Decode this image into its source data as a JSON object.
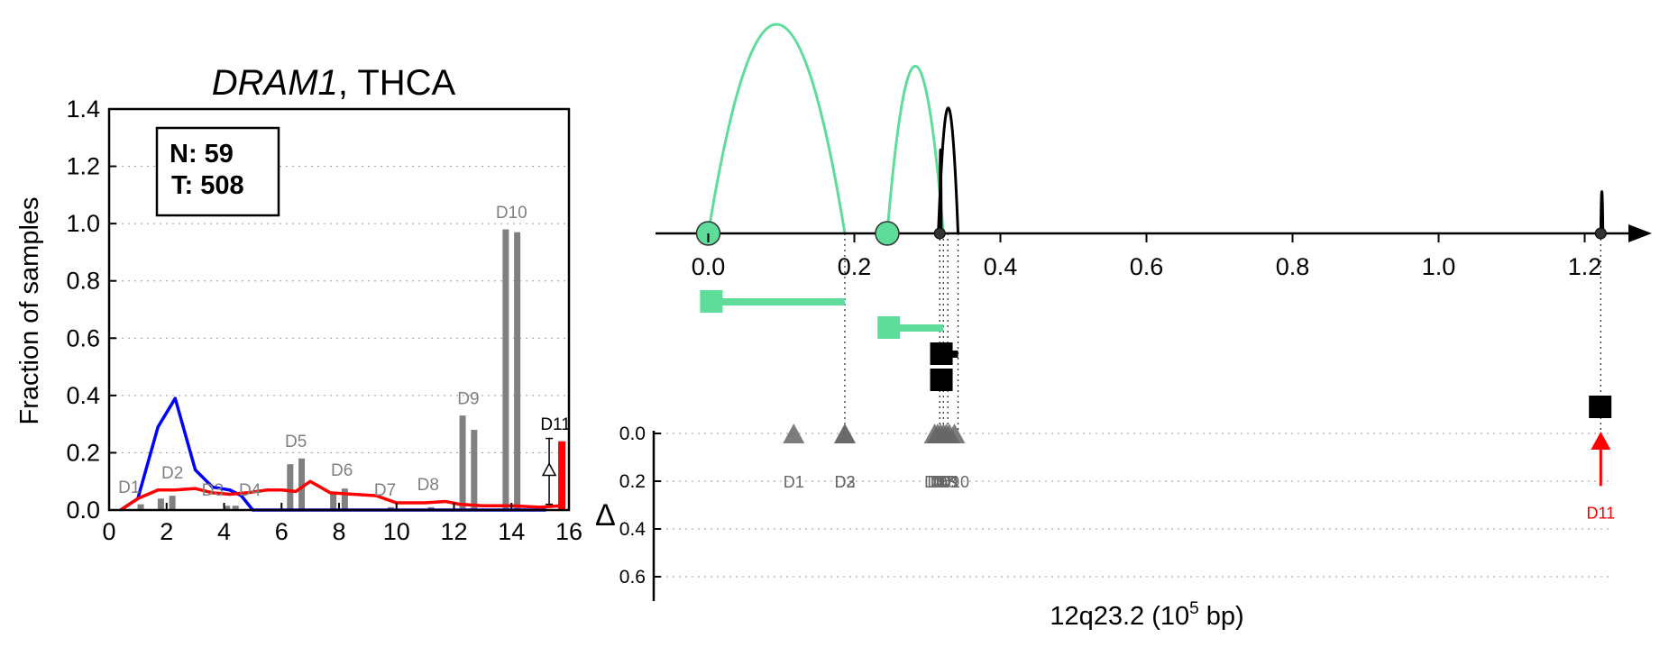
{
  "chart_data": [
    {
      "type": "bar",
      "title_gene": "DRAM1",
      "title_rest": ", THCA",
      "ylabel": "Fraction of samples",
      "xlim": [
        0,
        16
      ],
      "ylim": [
        0,
        1.4
      ],
      "xticks": [
        "0",
        "2",
        "4",
        "6",
        "8",
        "10",
        "12",
        "14",
        "16"
      ],
      "yticks": [
        "0.0",
        "0.2",
        "0.4",
        "0.6",
        "0.8",
        "1.0",
        "1.2",
        "1.4"
      ],
      "legend": {
        "n_label": "N: 59",
        "t_label": "T: 508",
        "placement": "top-left"
      },
      "grid": "horizontal dotted",
      "bars": [
        {
          "x": 1.1,
          "value": 0.02
        },
        {
          "x": 1.8,
          "value": 0.04
        },
        {
          "x": 2.2,
          "value": 0.05
        },
        {
          "x": 4.1,
          "value": 0.015
        },
        {
          "x": 4.4,
          "value": 0.015
        },
        {
          "x": 6.3,
          "value": 0.16
        },
        {
          "x": 6.7,
          "value": 0.18
        },
        {
          "x": 7.8,
          "value": 0.055
        },
        {
          "x": 8.2,
          "value": 0.075
        },
        {
          "x": 9.8,
          "value": 0.01
        },
        {
          "x": 11.2,
          "value": 0.01
        },
        {
          "x": 12.3,
          "value": 0.33
        },
        {
          "x": 12.7,
          "value": 0.28
        },
        {
          "x": 13.8,
          "value": 0.98
        },
        {
          "x": 14.2,
          "value": 0.97
        }
      ],
      "bar_labels": [
        {
          "text": "D1",
          "x": 0.7,
          "y": 0.06
        },
        {
          "text": "D2",
          "x": 2.2,
          "y": 0.11
        },
        {
          "text": "D3",
          "x": 3.6,
          "y": 0.05
        },
        {
          "text": "D4",
          "x": 4.9,
          "y": 0.05
        },
        {
          "text": "D5",
          "x": 6.5,
          "y": 0.22
        },
        {
          "text": "D6",
          "x": 8.1,
          "y": 0.12
        },
        {
          "text": "D7",
          "x": 9.6,
          "y": 0.05
        },
        {
          "text": "D8",
          "x": 11.1,
          "y": 0.07
        },
        {
          "text": "D9",
          "x": 12.5,
          "y": 0.37
        },
        {
          "text": "D10",
          "x": 14.0,
          "y": 1.02
        }
      ],
      "highlight": {
        "label": "D11",
        "x": 15.5,
        "value": 0.24,
        "delta_y": 0.14,
        "error_range": [
          0.02,
          0.25
        ],
        "color": "#ff0000"
      },
      "series": [
        {
          "color": "#0000ff",
          "x": [
            0.4,
            1.0,
            1.7,
            2.3,
            3.0,
            3.6,
            4.2,
            4.6,
            5.0,
            5.3,
            6.0,
            7.0,
            8.0,
            9.0,
            10.0,
            11.0,
            12.0,
            13.0,
            14.0,
            15.2
          ],
          "values": [
            0.0,
            0.04,
            0.29,
            0.39,
            0.14,
            0.08,
            0.07,
            0.05,
            0.0,
            0.0,
            0.0,
            0.0,
            0.0,
            0.0,
            0.0,
            0.0,
            0.0,
            0.0,
            0.0,
            0.0
          ]
        },
        {
          "color": "#ff0000",
          "x": [
            0.4,
            1.0,
            1.7,
            2.3,
            3.0,
            3.6,
            4.2,
            4.8,
            5.5,
            6.0,
            6.5,
            7.0,
            7.7,
            8.5,
            9.3,
            10.0,
            11.0,
            11.7,
            12.2,
            13.0,
            14.0,
            15.0,
            15.7
          ],
          "values": [
            0.0,
            0.04,
            0.07,
            0.07,
            0.075,
            0.06,
            0.055,
            0.06,
            0.07,
            0.07,
            0.065,
            0.1,
            0.06,
            0.055,
            0.05,
            0.025,
            0.025,
            0.03,
            0.02,
            0.015,
            0.015,
            0.01,
            0.015
          ]
        }
      ]
    },
    {
      "type": "arc-diagram",
      "xlabel_main": "12q23.2 (10",
      "xlabel_sup": "5",
      "xlabel_end": " bp)",
      "xlim": [
        -0.07,
        1.29
      ],
      "xticks": [
        "0.0",
        "0.2",
        "0.4",
        "0.6",
        "0.8",
        "1.0",
        "1.2"
      ],
      "delta_label": "Δ",
      "delta_ticks": [
        "0.0",
        "0.2",
        "0.4",
        "0.6"
      ],
      "delta_lim": [
        0,
        0.7
      ],
      "colors": {
        "green": "#5ddc9a",
        "black": "#000000",
        "marker": "#666666",
        "highlight": "#ff0000"
      },
      "arcs": [
        {
          "start": 0.0,
          "end": 0.187,
          "height": 1.0,
          "color": "green"
        },
        {
          "start": 0.245,
          "end": 0.322,
          "height": 0.8,
          "color": "green"
        },
        {
          "start": 0.315,
          "end": 0.342,
          "height": 0.6,
          "color": "black"
        },
        {
          "start": 0.317,
          "end": 0.319,
          "height": 0.4,
          "color": "black"
        },
        {
          "start": 1.222,
          "end": 1.225,
          "height": 0.2,
          "color": "black"
        }
      ],
      "nodes": [
        {
          "x": 0.0,
          "style": "big",
          "color": "green"
        },
        {
          "x": 0.245,
          "style": "big",
          "color": "green"
        },
        {
          "x": 0.317,
          "style": "small",
          "color": "black"
        },
        {
          "x": 1.222,
          "style": "small",
          "color": "black"
        }
      ],
      "segments": [
        {
          "start": -0.01,
          "end": 0.187,
          "row": 0,
          "color": "green"
        },
        {
          "start": 0.233,
          "end": 0.322,
          "row": 1,
          "color": "green"
        },
        {
          "start": 0.305,
          "end": 0.342,
          "row": 2,
          "color": "black"
        },
        {
          "start": 0.305,
          "end": 0.321,
          "row": 3,
          "color": "black"
        },
        {
          "start": 1.207,
          "end": 1.225,
          "row": 4,
          "color": "black"
        }
      ],
      "vlines": [
        0.187,
        0.317,
        0.322,
        0.328,
        0.342,
        1.222
      ],
      "markers": [
        {
          "x": 0.117,
          "delta": 0.0,
          "label": "D1"
        },
        {
          "x": 0.187,
          "delta": 0.0,
          "label": "D2"
        },
        {
          "x": 0.187,
          "delta": 0.0,
          "label": "D3"
        },
        {
          "x": 0.31,
          "delta": 0.0,
          "label": "D4"
        },
        {
          "x": 0.314,
          "delta": 0.0,
          "label": "D5"
        },
        {
          "x": 0.318,
          "delta": 0.0,
          "label": "D6"
        },
        {
          "x": 0.322,
          "delta": 0.0,
          "label": "D7"
        },
        {
          "x": 0.326,
          "delta": 0.0,
          "label": "D8"
        },
        {
          "x": 0.33,
          "delta": 0.0,
          "label": "D9"
        },
        {
          "x": 0.337,
          "delta": 0.0,
          "label": "D10"
        }
      ],
      "highlight_marker": {
        "x": 1.222,
        "delta": 0.22,
        "label": "D11"
      }
    }
  ]
}
